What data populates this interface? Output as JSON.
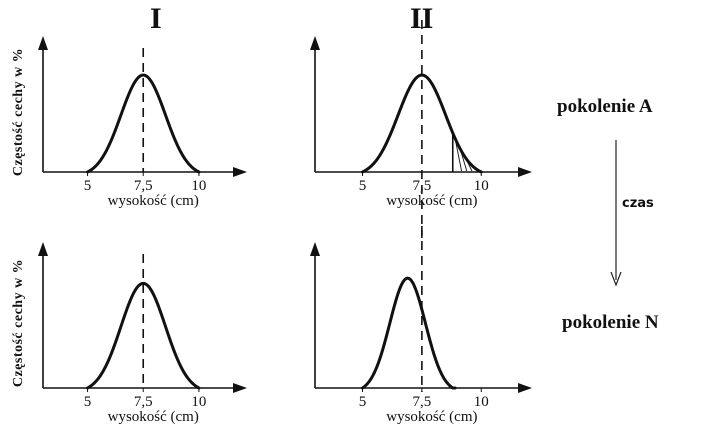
{
  "columns": {
    "left": "I",
    "right": "II"
  },
  "generations": {
    "top": "pokolenie A",
    "bottom": "pokolenie N"
  },
  "time_label": "czas",
  "chart_data": [
    {
      "type": "line",
      "id": "I-A",
      "xlabel": "wysokość (cm)",
      "ylabel": "Częstość cechy w %",
      "xticks": [
        "5",
        "7,5",
        "10"
      ],
      "xlim": [
        3.0,
        11.8
      ],
      "ylim": [
        0,
        1.3
      ],
      "series": [
        {
          "mean": 7.5,
          "sd": 1.0,
          "peak": 1.0,
          "from": 5.0,
          "to": 10.0
        }
      ],
      "reference_line_x": 7.5
    },
    {
      "type": "line",
      "id": "II-A",
      "xlabel": "wysokość (cm)",
      "ylabel": "",
      "xticks": [
        "5",
        "7,5",
        "10"
      ],
      "xlim": [
        3.0,
        11.8
      ],
      "ylim": [
        0,
        1.3
      ],
      "series": [
        {
          "mean": 7.5,
          "sd": 1.0,
          "peak": 1.0,
          "from": 5.0,
          "to": 10.0
        }
      ],
      "reference_line_x": 7.5,
      "selection_cutoff_x": 8.8
    },
    {
      "type": "line",
      "id": "I-N",
      "xlabel": "wysokość (cm)",
      "ylabel": "Częstość cechy w %",
      "xticks": [
        "5",
        "7,5",
        "10"
      ],
      "xlim": [
        3.0,
        11.8
      ],
      "ylim": [
        0,
        1.3
      ],
      "series": [
        {
          "mean": 7.5,
          "sd": 1.0,
          "peak": 1.0,
          "from": 5.0,
          "to": 10.0
        }
      ],
      "reference_line_x": 7.5
    },
    {
      "type": "line",
      "id": "II-N",
      "xlabel": "wysokość (cm)",
      "ylabel": "",
      "xticks": [
        "5",
        "7,5",
        "10"
      ],
      "xlim": [
        3.0,
        11.8
      ],
      "ylim": [
        0,
        1.3
      ],
      "series": [
        {
          "mean": 6.9,
          "sd": 0.75,
          "peak": 1.05,
          "from": 5.0,
          "to": 8.9
        }
      ],
      "reference_line_x": 7.5
    }
  ]
}
